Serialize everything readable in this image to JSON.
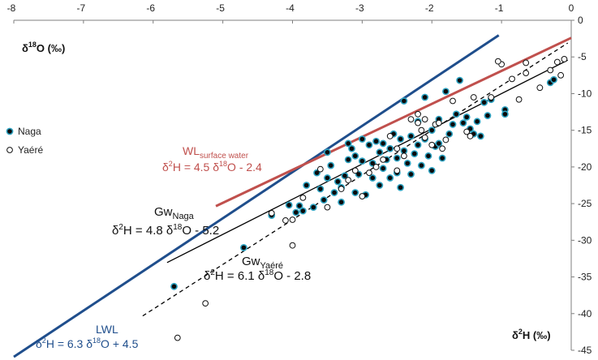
{
  "chart_data": {
    "type": "scatter",
    "x_axis": {
      "label_main": "δ",
      "label_sup": "18",
      "label_rest": "O (‰)",
      "ticks": [
        {
          "value": -8,
          "label": "-8"
        },
        {
          "value": -7,
          "label": "-7"
        },
        {
          "value": -6,
          "label": "-6"
        },
        {
          "value": -5,
          "label": "-5"
        },
        {
          "value": -4,
          "label": "-4"
        },
        {
          "value": -3,
          "label": "-3"
        },
        {
          "value": -2,
          "label": "-2"
        },
        {
          "value": -1,
          "label": "-1"
        },
        {
          "value": 0,
          "label": "0"
        }
      ],
      "range": [
        -8,
        0
      ]
    },
    "y_axis": {
      "label_main": "δ",
      "label_sup": "2",
      "label_rest": "H (‰)",
      "ticks": [
        {
          "value": 0,
          "label": "0"
        },
        {
          "value": -5,
          "label": "-5"
        },
        {
          "value": -10,
          "label": "-10"
        },
        {
          "value": -15,
          "label": "-15"
        },
        {
          "value": -20,
          "label": "-20"
        },
        {
          "value": -25,
          "label": "-25"
        },
        {
          "value": -30,
          "label": "-30"
        },
        {
          "value": -35,
          "label": "-35"
        },
        {
          "value": -40,
          "label": "-40"
        },
        {
          "value": -45,
          "label": "-45"
        }
      ],
      "range": [
        -45,
        0
      ]
    },
    "legend": {
      "position": "left",
      "items": [
        {
          "label": "Naga",
          "marker": "filled"
        },
        {
          "label": "Yaéré",
          "marker": "open"
        }
      ]
    },
    "lines": [
      {
        "id": "lwl",
        "name": "LWL",
        "slope": 6.3,
        "intercept": 4.5,
        "x_range": [
          -8.0,
          -1.04
        ],
        "color": "#1f4e8c",
        "style": "solid",
        "width": 3,
        "label": "LWL",
        "eq_pre": "δ",
        "eq_sup1": "2",
        "eq_mid": "H = 6.3 δ",
        "eq_sup2": "18",
        "eq_post": "O + 4.5"
      },
      {
        "id": "wl",
        "name": "WL",
        "name_sub": "surface water",
        "slope": 4.5,
        "intercept": -2.4,
        "x_range": [
          -5.1,
          0
        ],
        "color": "#c0504d",
        "style": "solid",
        "width": 3,
        "label": "WL",
        "label_sub": "surface water",
        "eq_pre": "δ",
        "eq_sup1": "2",
        "eq_mid": "H = 4.5 δ",
        "eq_sup2": "18",
        "eq_post": "O - 2.4"
      },
      {
        "id": "gw_naga",
        "name": "Gw",
        "name_sub": "Naga",
        "slope": 4.8,
        "intercept": -5.2,
        "x_range": [
          -5.8,
          -0.05
        ],
        "color": "#000000",
        "style": "solid",
        "width": 1.3,
        "label": "Gw",
        "label_sub": "Naga",
        "eq_pre": "δ",
        "eq_sup1": "2",
        "eq_mid": "H = 4.8 δ",
        "eq_sup2": "18",
        "eq_post": "O - 5.2"
      },
      {
        "id": "gw_yaere",
        "name": "Gw",
        "name_sub": "Yaéré",
        "slope": 6.1,
        "intercept": -2.8,
        "x_range": [
          -6.15,
          -0.05
        ],
        "color": "#000000",
        "style": "dashed",
        "width": 1.3,
        "label": "Gw",
        "label_sub": "Yaéré",
        "eq_pre": "δ",
        "eq_sup1": "2",
        "eq_mid": "H = 6.1 δ",
        "eq_sup2": "18",
        "eq_post": "O - 2.8"
      }
    ],
    "series": [
      {
        "name": "Naga",
        "marker": "filled",
        "points": [
          [
            -5.7,
            -36.3
          ],
          [
            -4.7,
            -31.0
          ],
          [
            -4.3,
            -26.6
          ],
          [
            -4.05,
            -25.2
          ],
          [
            -3.95,
            -26.2
          ],
          [
            -3.9,
            -25.3
          ],
          [
            -3.85,
            -26.0
          ],
          [
            -3.8,
            -22.5
          ],
          [
            -3.7,
            -25.5
          ],
          [
            -3.65,
            -20.8
          ],
          [
            -3.6,
            -23.0
          ],
          [
            -3.55,
            -24.5
          ],
          [
            -3.5,
            -18.0
          ],
          [
            -3.5,
            -21.5
          ],
          [
            -3.45,
            -19.8
          ],
          [
            -3.4,
            -23.5
          ],
          [
            -3.35,
            -22.0
          ],
          [
            -3.3,
            -22.8
          ],
          [
            -3.3,
            -24.8
          ],
          [
            -3.25,
            -21.2
          ],
          [
            -3.2,
            -19.0
          ],
          [
            -3.2,
            -16.8
          ],
          [
            -3.15,
            -17.5
          ],
          [
            -3.1,
            -23.5
          ],
          [
            -3.1,
            -18.5
          ],
          [
            -3.05,
            -21.0
          ],
          [
            -3.0,
            -16.2
          ],
          [
            -3.0,
            -19.2
          ],
          [
            -2.95,
            -23.8
          ],
          [
            -2.9,
            -17.0
          ],
          [
            -2.85,
            -21.5
          ],
          [
            -2.85,
            -19.5
          ],
          [
            -2.8,
            -16.5
          ],
          [
            -2.75,
            -18.0
          ],
          [
            -2.75,
            -22.5
          ],
          [
            -2.7,
            -20.2
          ],
          [
            -2.7,
            -16.8
          ],
          [
            -2.65,
            -19.0
          ],
          [
            -2.6,
            -21.5
          ],
          [
            -2.6,
            -17.5
          ],
          [
            -2.55,
            -15.5
          ],
          [
            -2.5,
            -18.8
          ],
          [
            -2.5,
            -20.8
          ],
          [
            -2.45,
            -16.2
          ],
          [
            -2.45,
            -22.8
          ],
          [
            -2.4,
            -17.8
          ],
          [
            -2.4,
            -11.0
          ],
          [
            -2.35,
            -19.5
          ],
          [
            -2.3,
            -15.8
          ],
          [
            -2.3,
            -21.0
          ],
          [
            -2.25,
            -18.2
          ],
          [
            -2.2,
            -17.0
          ],
          [
            -2.2,
            -13.8
          ],
          [
            -2.15,
            -19.8
          ],
          [
            -2.1,
            -16.2
          ],
          [
            -2.1,
            -10.5
          ],
          [
            -2.05,
            -18.5
          ],
          [
            -2.0,
            -15.0
          ],
          [
            -2.0,
            -20.5
          ],
          [
            -1.95,
            -17.2
          ],
          [
            -1.9,
            -13.5
          ],
          [
            -1.9,
            -16.8
          ],
          [
            -1.85,
            -18.8
          ],
          [
            -1.8,
            -9.7
          ],
          [
            -1.75,
            -15.5
          ],
          [
            -1.7,
            -14.2
          ],
          [
            -1.65,
            -12.8
          ],
          [
            -1.6,
            -8.2
          ],
          [
            -1.55,
            -14.0
          ],
          [
            -1.5,
            -13.2
          ],
          [
            -1.45,
            -14.8
          ],
          [
            -1.4,
            -15.5
          ],
          [
            -1.35,
            -13.8
          ],
          [
            -1.3,
            -15.8
          ],
          [
            -1.25,
            -11.2
          ],
          [
            -1.2,
            -13.0
          ],
          [
            -1.15,
            -10.8
          ],
          [
            -0.95,
            -12.2
          ],
          [
            -0.95,
            -12.8
          ],
          [
            -0.3,
            -8.5
          ],
          [
            -0.25,
            -8.1
          ]
        ]
      },
      {
        "name": "Yaéré",
        "marker": "open",
        "points": [
          [
            -5.65,
            -43.3
          ],
          [
            -5.25,
            -38.6
          ],
          [
            -4.3,
            -26.3
          ],
          [
            -4.1,
            -27.3
          ],
          [
            -4.0,
            -30.7
          ],
          [
            -4.0,
            -27.2
          ],
          [
            -3.85,
            -24.2
          ],
          [
            -3.6,
            -20.3
          ],
          [
            -3.5,
            -25.5
          ],
          [
            -3.3,
            -23.0
          ],
          [
            -3.2,
            -21.8
          ],
          [
            -3.1,
            -20.5
          ],
          [
            -3.0,
            -24.0
          ],
          [
            -2.9,
            -20.8
          ],
          [
            -2.8,
            -20.0
          ],
          [
            -2.7,
            -19.0
          ],
          [
            -2.6,
            -15.8
          ],
          [
            -2.5,
            -17.5
          ],
          [
            -2.5,
            -20.5
          ],
          [
            -2.4,
            -18.5
          ],
          [
            -2.3,
            -13.5
          ],
          [
            -2.2,
            -12.8
          ],
          [
            -2.2,
            -14.0
          ],
          [
            -2.15,
            -15.0
          ],
          [
            -2.1,
            -16.0
          ],
          [
            -2.1,
            -13.5
          ],
          [
            -2.0,
            -17.0
          ],
          [
            -1.95,
            -14.2
          ],
          [
            -1.9,
            -14.0
          ],
          [
            -1.85,
            -17.5
          ],
          [
            -1.8,
            -16.3
          ],
          [
            -1.5,
            -15.2
          ],
          [
            -1.45,
            -15.8
          ],
          [
            -1.4,
            -10.5
          ],
          [
            -1.15,
            -10.5
          ],
          [
            -1.0,
            -6.0
          ],
          [
            -0.85,
            -8.0
          ],
          [
            -0.75,
            -10.8
          ],
          [
            -0.65,
            -5.8
          ],
          [
            -0.65,
            -7.2
          ],
          [
            -0.45,
            -9.2
          ],
          [
            -0.3,
            -6.8
          ],
          [
            -0.2,
            -5.7
          ],
          [
            -0.15,
            -7.5
          ],
          [
            -0.1,
            -5.3
          ],
          [
            -1.05,
            -5.6
          ],
          [
            -1.7,
            -11.0
          ]
        ]
      }
    ]
  }
}
